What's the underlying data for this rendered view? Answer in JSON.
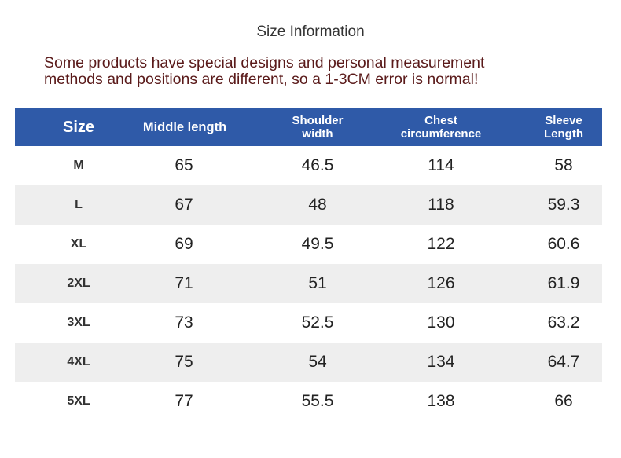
{
  "title": "Size Information",
  "notice": {
    "line1": "Some products have special designs and personal measurement",
    "line2": "methods and positions are different, so a 1-3CM error is normal!"
  },
  "colors": {
    "header_bg": "#2f5aa8",
    "alt_row_bg": "#eeeeee"
  },
  "table": {
    "headers": {
      "size": "Size",
      "middle_length": "Middle length",
      "shoulder_width_1": "Shoulder",
      "shoulder_width_2": "width",
      "chest_1": "Chest",
      "chest_2": "circumference",
      "sleeve_1": "Sleeve",
      "sleeve_2": "Length"
    },
    "rows": [
      {
        "size": "M",
        "middle_length": "65",
        "shoulder_width": "46.5",
        "chest": "114",
        "sleeve": "58"
      },
      {
        "size": "L",
        "middle_length": "67",
        "shoulder_width": "48",
        "chest": "118",
        "sleeve": "59.3"
      },
      {
        "size": "XL",
        "middle_length": "69",
        "shoulder_width": "49.5",
        "chest": "122",
        "sleeve": "60.6"
      },
      {
        "size": "2XL",
        "middle_length": "71",
        "shoulder_width": "51",
        "chest": "126",
        "sleeve": "61.9"
      },
      {
        "size": "3XL",
        "middle_length": "73",
        "shoulder_width": "52.5",
        "chest": "130",
        "sleeve": "63.2"
      },
      {
        "size": "4XL",
        "middle_length": "75",
        "shoulder_width": "54",
        "chest": "134",
        "sleeve": "64.7"
      },
      {
        "size": "5XL",
        "middle_length": "77",
        "shoulder_width": "55.5",
        "chest": "138",
        "sleeve": "66"
      }
    ]
  }
}
